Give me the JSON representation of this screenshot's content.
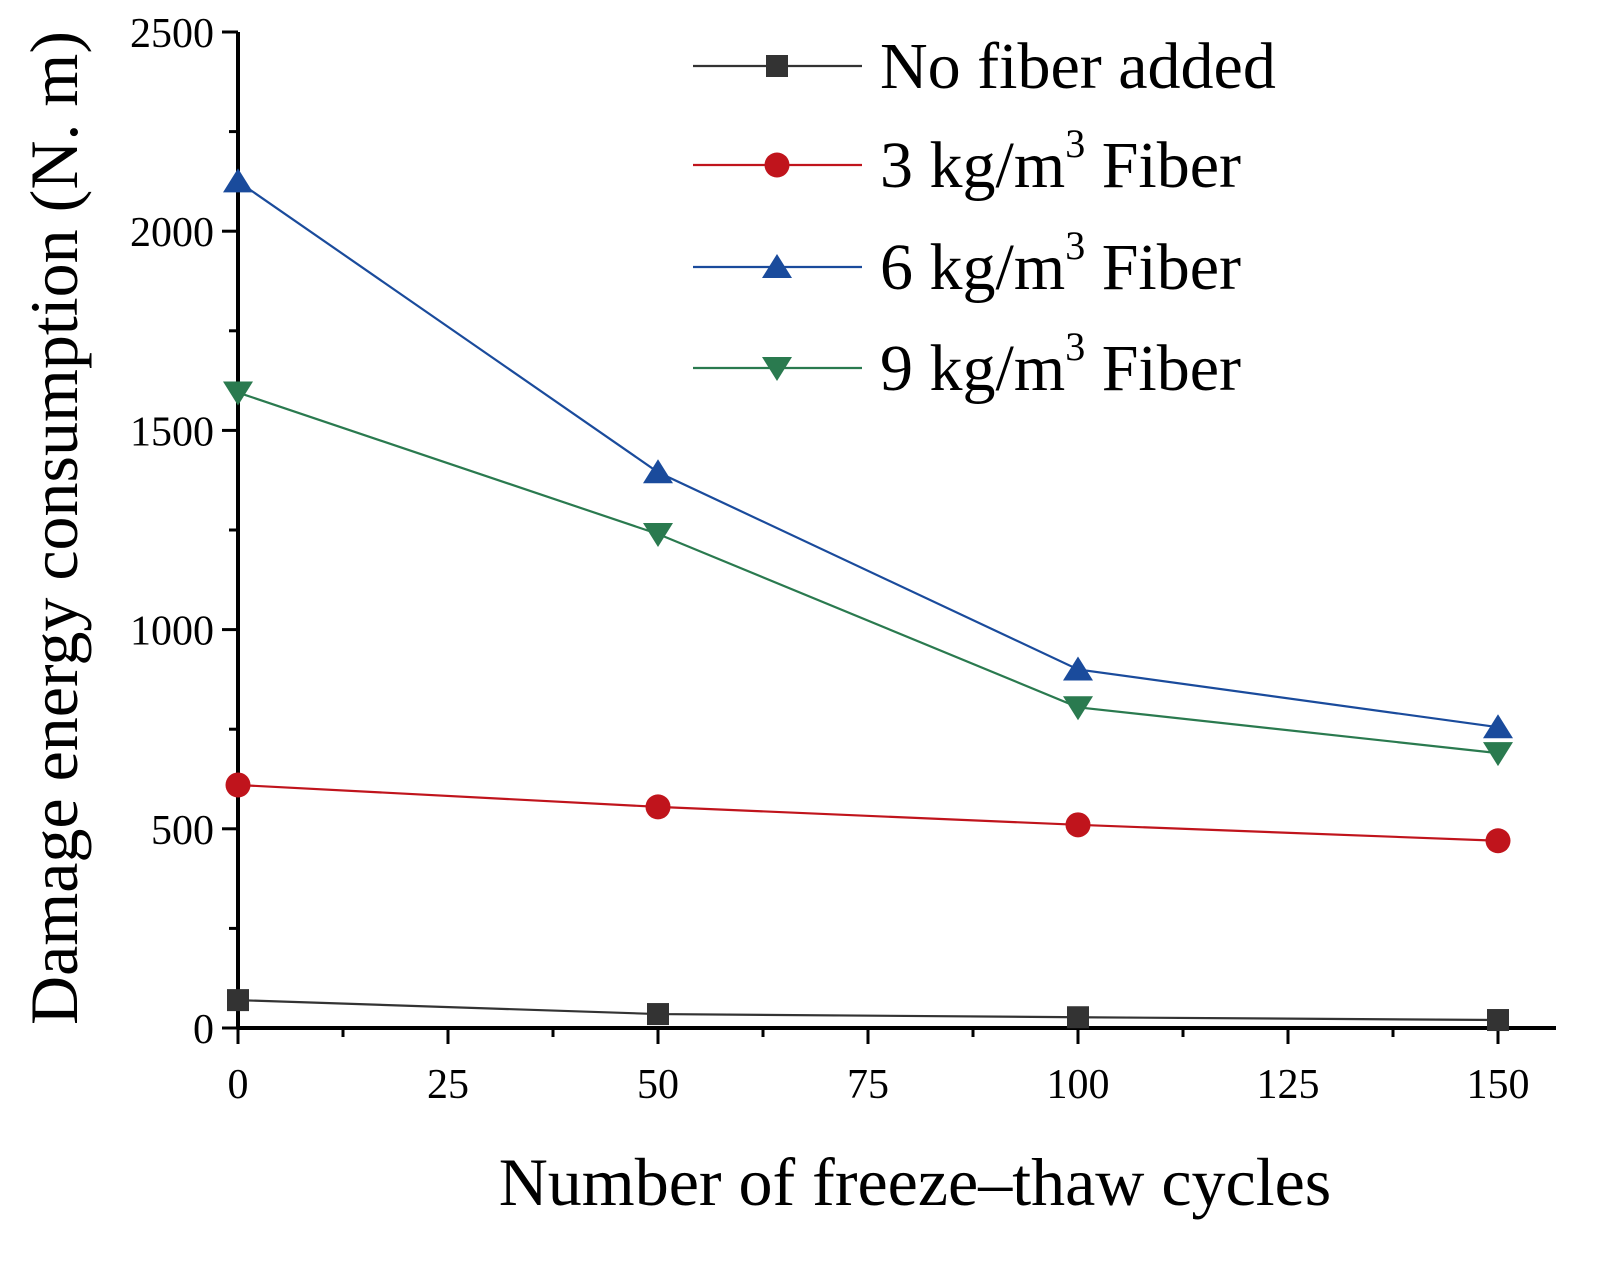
{
  "chart_data": {
    "type": "line",
    "title": "",
    "xlabel": "Number of freeze–thaw cycles",
    "ylabel": "Damage energy consumption (N. m)",
    "xlim": [
      0,
      160
    ],
    "ylim": [
      0,
      2500
    ],
    "x_major_ticks": [
      0,
      25,
      50,
      75,
      100,
      125,
      150
    ],
    "y_major_ticks": [
      0,
      500,
      1000,
      1500,
      2000,
      2500
    ],
    "x_minor_ticks": [
      12.5,
      37.5,
      62.5,
      87.5,
      112.5,
      137.5
    ],
    "y_minor_ticks": [
      250,
      750,
      1250,
      1750,
      2250
    ],
    "grid": false,
    "legend_position": "top-right",
    "x": [
      0,
      50,
      100,
      150
    ],
    "series": [
      {
        "name": "No fiber added",
        "label": {
          "prefix": "No fiber added",
          "sup": "",
          "suffix": ""
        },
        "marker": "square",
        "color": "#333333",
        "values": [
          70,
          35,
          27,
          20
        ]
      },
      {
        "name": "3 kg/m3 Fiber",
        "label": {
          "prefix": "3 kg/m",
          "sup": "3",
          "suffix": " Fiber"
        },
        "marker": "circle",
        "color": "#c0141c",
        "values": [
          610,
          555,
          510,
          470
        ]
      },
      {
        "name": "6 kg/m3 Fiber",
        "label": {
          "prefix": "6 kg/m",
          "sup": "3",
          "suffix": " Fiber"
        },
        "marker": "triangle-up",
        "color": "#1a4b9c",
        "values": [
          2125,
          1395,
          900,
          755
        ]
      },
      {
        "name": "9 kg/m3 Fiber",
        "label": {
          "prefix": "9 kg/m",
          "sup": "3",
          "suffix": " Fiber"
        },
        "marker": "triangle-down",
        "color": "#2a7a4f",
        "values": [
          1595,
          1240,
          805,
          690
        ]
      }
    ]
  }
}
